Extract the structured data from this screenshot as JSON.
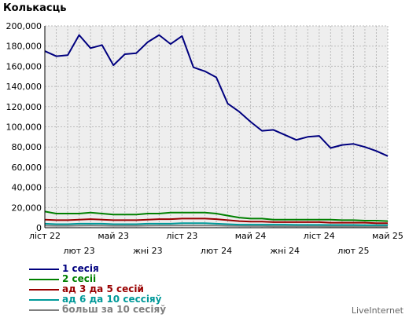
{
  "title": "Колькасць",
  "brand": "LiveInternet",
  "chart_data": {
    "type": "line",
    "title": "Колькасць",
    "xlabel": "",
    "ylabel": "",
    "ylim": [
      0,
      200000
    ],
    "yticks": [
      "0",
      "20,000",
      "40,000",
      "60,000",
      "80,000",
      "100,000",
      "120,000",
      "140,000",
      "160,000",
      "180,000",
      "200,000"
    ],
    "xticks": [
      {
        "label": "ліст 22",
        "index": 0,
        "row": 0
      },
      {
        "label": "лют 23",
        "index": 3,
        "row": 1
      },
      {
        "label": "май 23",
        "index": 6,
        "row": 0
      },
      {
        "label": "жні 23",
        "index": 9,
        "row": 1
      },
      {
        "label": "ліст 23",
        "index": 12,
        "row": 0
      },
      {
        "label": "лют 24",
        "index": 15,
        "row": 1
      },
      {
        "label": "май 24",
        "index": 18,
        "row": 0
      },
      {
        "label": "жні 24",
        "index": 21,
        "row": 1
      },
      {
        "label": "ліст 24",
        "index": 24,
        "row": 0
      },
      {
        "label": "лют 25",
        "index": 27,
        "row": 1
      },
      {
        "label": "май 25",
        "index": 30,
        "row": 0
      }
    ],
    "grid": true,
    "legend_position": "bottom-left",
    "series": [
      {
        "name": "1 сесія",
        "color": "#00007f",
        "values": [
          175000,
          170000,
          171000,
          191000,
          178000,
          181000,
          161000,
          172000,
          173000,
          184000,
          191000,
          182000,
          190000,
          159000,
          155000,
          149000,
          123000,
          115000,
          105000,
          96000,
          97000,
          92000,
          87000,
          90000,
          91000,
          79000,
          82000,
          83000,
          80000,
          76000,
          71000
        ]
      },
      {
        "name": "2 сесіі",
        "color": "#008000",
        "values": [
          16000,
          14000,
          14000,
          14000,
          15000,
          14000,
          13000,
          13000,
          13000,
          14000,
          14000,
          15000,
          15000,
          15000,
          15000,
          14000,
          12000,
          10000,
          9000,
          9000,
          8000,
          8000,
          8000,
          8000,
          8000,
          8000,
          7500,
          7500,
          7000,
          7000,
          6500
        ]
      },
      {
        "name": "ад 3 да 5 сесій",
        "color": "#990000",
        "values": [
          8000,
          7500,
          7500,
          8000,
          8500,
          8000,
          7500,
          7500,
          7500,
          8000,
          8500,
          8500,
          9000,
          9000,
          9000,
          8500,
          7500,
          6500,
          6000,
          6000,
          5500,
          5500,
          5500,
          5500,
          5500,
          5000,
          5000,
          5000,
          5000,
          4500,
          4500
        ]
      },
      {
        "name": "ад 6 да 10 сессіяў",
        "color": "#009999",
        "values": [
          4000,
          3500,
          3500,
          4000,
          4000,
          4000,
          3500,
          3500,
          3500,
          4000,
          4000,
          4000,
          4500,
          4500,
          4500,
          4000,
          3500,
          3000,
          3000,
          3000,
          3000,
          3000,
          2800,
          2800,
          2800,
          2700,
          2700,
          2700,
          2600,
          2600,
          2500
        ]
      },
      {
        "name": "больш за 10 сесіяў",
        "color": "#808080",
        "values": [
          2000,
          1900,
          1900,
          2000,
          2100,
          2000,
          1900,
          1900,
          1900,
          2000,
          2100,
          2100,
          2200,
          2200,
          2200,
          2100,
          1900,
          1700,
          1600,
          1600,
          1500,
          1500,
          1500,
          1500,
          1500,
          1400,
          1400,
          1400,
          1400,
          1300,
          1300
        ]
      }
    ]
  }
}
